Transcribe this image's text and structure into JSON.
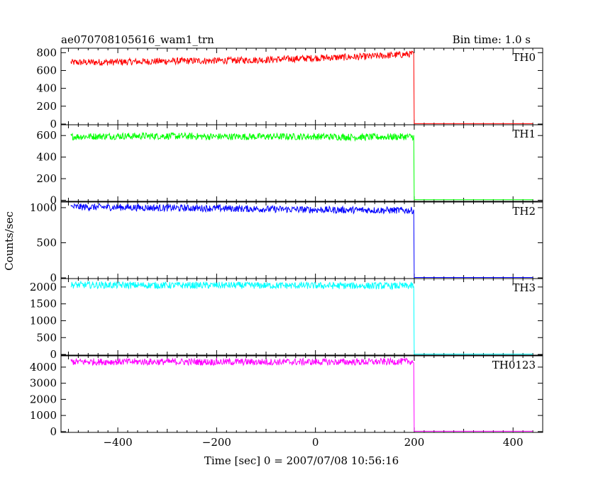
{
  "chart_data": {
    "type": "line",
    "title": "ae070708105616_wam1_trn",
    "bin_time_label": "Bin time: 1.0 s",
    "xlabel": "Time [sec] 0 = 2007/07/08 10:56:16",
    "ylabel": "Counts/sec",
    "xlim": [
      -515,
      460
    ],
    "x_ticks": [
      -400,
      -200,
      0,
      200,
      400
    ],
    "x_tick_labels": [
      "−400",
      "−200",
      "0",
      "200",
      "400"
    ],
    "grid": false,
    "panels": [
      {
        "name": "TH0",
        "color": "#ff0000",
        "ylim": [
          -8,
          850
        ],
        "y_ticks": [
          0,
          200,
          400,
          600,
          800
        ],
        "y_tick_labels": [
          "0",
          "200",
          "400",
          "600",
          "800"
        ],
        "x": [
          -495,
          -400,
          -300,
          -200,
          -100,
          0,
          100,
          150,
          199,
          200,
          440
        ],
        "values": [
          690,
          695,
          705,
          710,
          720,
          740,
          755,
          770,
          785,
          5,
          5
        ]
      },
      {
        "name": "TH1",
        "color": "#00ff00",
        "ylim": [
          -10,
          700
        ],
        "y_ticks": [
          0,
          200,
          400,
          600
        ],
        "y_tick_labels": [
          "0",
          "200",
          "400",
          "600"
        ],
        "x": [
          -495,
          -400,
          -300,
          -200,
          -100,
          0,
          100,
          199,
          200,
          440
        ],
        "values": [
          590,
          595,
          595,
          590,
          590,
          590,
          585,
          590,
          5,
          5
        ]
      },
      {
        "name": "TH2",
        "color": "#0000ff",
        "ylim": [
          -10,
          1080
        ],
        "y_ticks": [
          0,
          500,
          1000
        ],
        "y_tick_labels": [
          "0",
          "500",
          "1000"
        ],
        "x": [
          -495,
          -400,
          -300,
          -200,
          -100,
          0,
          100,
          199,
          200,
          440
        ],
        "values": [
          1010,
          1005,
          995,
          990,
          980,
          970,
          965,
          960,
          5,
          5
        ]
      },
      {
        "name": "TH3",
        "color": "#00ffff",
        "ylim": [
          -20,
          2250
        ],
        "y_ticks": [
          0,
          500,
          1000,
          1500,
          2000
        ],
        "y_tick_labels": [
          "0",
          "500",
          "1000",
          "1500",
          "2000"
        ],
        "x": [
          -495,
          -400,
          -300,
          -200,
          -100,
          0,
          100,
          199,
          200,
          440
        ],
        "values": [
          2060,
          2055,
          2050,
          2050,
          2045,
          2040,
          2035,
          2030,
          10,
          10
        ]
      },
      {
        "name": "TH0123",
        "color": "#ff00ff",
        "ylim": [
          -50,
          4700
        ],
        "y_ticks": [
          0,
          1000,
          2000,
          3000,
          4000
        ],
        "y_tick_labels": [
          "0",
          "1000",
          "2000",
          "3000",
          "4000"
        ],
        "x": [
          -495,
          -400,
          -300,
          -200,
          -100,
          0,
          100,
          199,
          200,
          440
        ],
        "values": [
          4330,
          4330,
          4330,
          4320,
          4320,
          4320,
          4320,
          4350,
          20,
          20
        ]
      }
    ]
  }
}
